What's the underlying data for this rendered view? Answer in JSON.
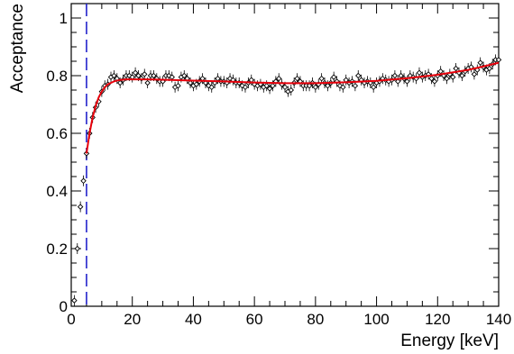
{
  "chart_data": {
    "type": "scatter",
    "title": "",
    "xlabel": "Energy [keV]",
    "ylabel": "Acceptance",
    "xlim": [
      0,
      140
    ],
    "ylim": [
      0,
      1.05
    ],
    "x_ticks": [
      "0",
      "20",
      "40",
      "60",
      "80",
      "100",
      "120",
      "140"
    ],
    "y_ticks": [
      "0",
      "0.2",
      "0.4",
      "0.6",
      "0.8",
      "1"
    ],
    "grid": false,
    "legend": "none",
    "threshold_line": {
      "x": 5,
      "style": "dashed",
      "color": "#2222cc"
    },
    "fit_color": "#e8000b",
    "marker_color": "#000000",
    "series": [
      {
        "style": "open-diamond",
        "x": [
          1,
          2,
          3,
          4,
          5,
          6,
          7,
          8,
          9,
          10,
          11,
          12,
          13,
          14,
          15,
          16,
          17,
          18,
          19,
          20,
          21,
          22,
          23,
          24,
          25,
          26,
          27,
          28,
          29,
          30,
          31,
          32,
          33,
          34,
          35,
          36,
          37,
          38,
          39,
          40,
          41,
          42,
          43,
          44,
          45,
          46,
          47,
          48,
          49,
          50,
          51,
          52,
          53,
          54,
          55,
          56,
          57,
          58,
          59,
          60,
          61,
          62,
          63,
          64,
          65,
          66,
          67,
          68,
          69,
          70,
          71,
          72,
          73,
          74,
          75,
          76,
          77,
          78,
          79,
          80,
          81,
          82,
          83,
          84,
          85,
          86,
          87,
          88,
          89,
          90,
          91,
          92,
          93,
          94,
          95,
          96,
          97,
          98,
          99,
          100,
          101,
          102,
          103,
          104,
          105,
          106,
          107,
          108,
          109,
          110,
          111,
          112,
          113,
          114,
          115,
          116,
          117,
          118,
          119,
          120,
          121,
          122,
          123,
          124,
          125,
          126,
          127,
          128,
          129,
          130,
          131,
          132,
          133,
          134,
          135,
          136,
          137,
          138,
          139,
          140
        ],
        "y": [
          0.02,
          0.2,
          0.345,
          0.435,
          0.53,
          0.6,
          0.655,
          0.69,
          0.71,
          0.745,
          0.765,
          0.77,
          0.795,
          0.8,
          0.79,
          0.775,
          0.785,
          0.8,
          0.8,
          0.795,
          0.81,
          0.8,
          0.79,
          0.805,
          0.775,
          0.8,
          0.8,
          0.79,
          0.78,
          0.78,
          0.8,
          0.8,
          0.795,
          0.76,
          0.765,
          0.795,
          0.8,
          0.79,
          0.775,
          0.765,
          0.77,
          0.78,
          0.79,
          0.775,
          0.765,
          0.76,
          0.775,
          0.79,
          0.78,
          0.78,
          0.775,
          0.79,
          0.785,
          0.775,
          0.775,
          0.765,
          0.76,
          0.775,
          0.785,
          0.77,
          0.765,
          0.77,
          0.76,
          0.765,
          0.755,
          0.765,
          0.78,
          0.79,
          0.77,
          0.76,
          0.745,
          0.75,
          0.775,
          0.79,
          0.78,
          0.765,
          0.765,
          0.765,
          0.775,
          0.76,
          0.77,
          0.79,
          0.775,
          0.765,
          0.775,
          0.795,
          0.78,
          0.765,
          0.76,
          0.785,
          0.775,
          0.78,
          0.765,
          0.8,
          0.785,
          0.775,
          0.78,
          0.775,
          0.76,
          0.775,
          0.78,
          0.79,
          0.785,
          0.78,
          0.785,
          0.8,
          0.78,
          0.8,
          0.79,
          0.78,
          0.8,
          0.795,
          0.79,
          0.81,
          0.795,
          0.8,
          0.805,
          0.79,
          0.78,
          0.8,
          0.815,
          0.8,
          0.79,
          0.805,
          0.795,
          0.825,
          0.81,
          0.8,
          0.815,
          0.825,
          0.83,
          0.805,
          0.82,
          0.845,
          0.83,
          0.82,
          0.825,
          0.84,
          0.855,
          0.855
        ]
      }
    ],
    "fit": {
      "x": [
        5,
        6,
        7,
        8,
        9,
        10,
        11,
        12,
        13,
        14,
        15,
        16,
        18,
        20,
        25,
        30,
        40,
        50,
        60,
        70,
        80,
        90,
        100,
        110,
        120,
        130,
        135,
        140
      ],
      "y": [
        0.53,
        0.6,
        0.655,
        0.695,
        0.725,
        0.745,
        0.76,
        0.77,
        0.775,
        0.78,
        0.783,
        0.785,
        0.787,
        0.787,
        0.787,
        0.786,
        0.783,
        0.78,
        0.776,
        0.774,
        0.774,
        0.777,
        0.782,
        0.791,
        0.803,
        0.82,
        0.832,
        0.845
      ]
    }
  }
}
